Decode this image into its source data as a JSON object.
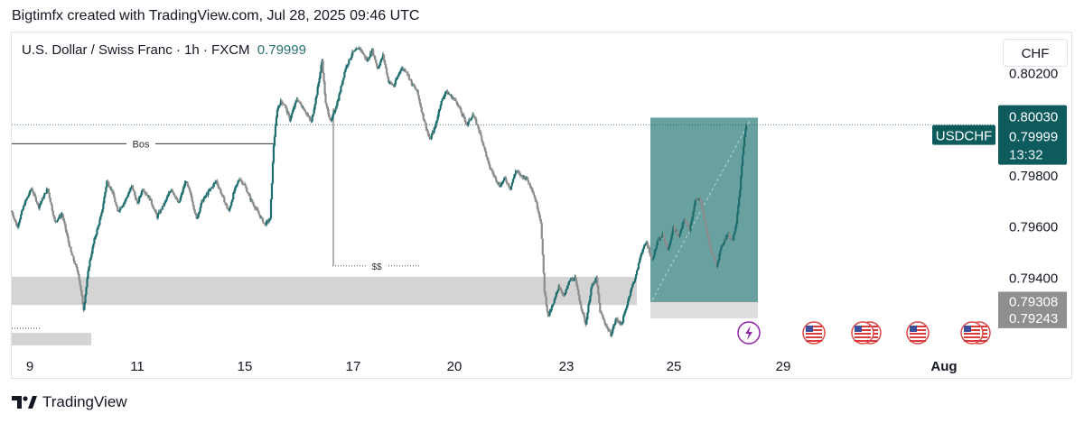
{
  "caption": "Bigtimfx created with TradingView.com, Jul 28, 2025 09:46 UTC",
  "header": {
    "symbol_title": "U.S. Dollar / Swiss Franc · 1h · FXCM",
    "last_price": "0.79999",
    "currency": "CHF"
  },
  "brand": {
    "name": "TradingView"
  },
  "colors": {
    "up": "#1e6e6e",
    "down": "#8c8c8c",
    "box": "#4f8f8f",
    "zone": "#d4d4d4",
    "accent": "#0d5b5d",
    "gray_label": "#8f8f8f"
  },
  "chart_data": {
    "type": "candlestick",
    "timeframe": "1h",
    "ylim": [
      0.7913,
      0.8036
    ],
    "y_ticks": [
      "0.80200",
      "0.79800",
      "0.79600",
      "0.79400"
    ],
    "x_ticks": [
      "9",
      "11",
      "15",
      "17",
      "20",
      "23",
      "25",
      "29",
      "Aug"
    ],
    "price_labels": [
      {
        "text": "0.80030",
        "value": 0.8003,
        "style": "accent"
      },
      {
        "text": "0.79999",
        "value": 0.79999,
        "style": "accent",
        "tag": "USDCHF",
        "countdown": "13:32"
      },
      {
        "text": "0.79308",
        "value": 0.79308,
        "style": "gray"
      },
      {
        "text": "0.79243",
        "value": 0.79243,
        "style": "gray"
      }
    ],
    "annotations": [
      {
        "text": "Bos",
        "value": 0.79925
      },
      {
        "text": "$$",
        "value": 0.79448
      }
    ],
    "zones": [
      {
        "name": "demand-zone",
        "from": 0.79295,
        "to": 0.79405
      }
    ],
    "position_box": {
      "top": 0.79999,
      "entry": 0.79308,
      "stop": 0.79243
    },
    "events": [
      "lightning",
      "us-flag",
      "us-flag-double",
      "us-flag",
      "us-flag-double"
    ],
    "series": [
      {
        "name": "USDCHF",
        "close_path": [
          [
            0,
            0.7966
          ],
          [
            6,
            0.796
          ],
          [
            14,
            0.7969
          ],
          [
            22,
            0.7975
          ],
          [
            30,
            0.7968
          ],
          [
            40,
            0.7975
          ],
          [
            48,
            0.7962
          ],
          [
            56,
            0.7965
          ],
          [
            66,
            0.795
          ],
          [
            74,
            0.7942
          ],
          [
            80,
            0.7928
          ],
          [
            86,
            0.7945
          ],
          [
            92,
            0.7955
          ],
          [
            100,
            0.7965
          ],
          [
            106,
            0.7978
          ],
          [
            112,
            0.7974
          ],
          [
            118,
            0.7966
          ],
          [
            126,
            0.797
          ],
          [
            134,
            0.7976
          ],
          [
            140,
            0.7969
          ],
          [
            146,
            0.7975
          ],
          [
            154,
            0.7971
          ],
          [
            162,
            0.7964
          ],
          [
            170,
            0.7969
          ],
          [
            178,
            0.7975
          ],
          [
            186,
            0.7969
          ],
          [
            194,
            0.7978
          ],
          [
            200,
            0.7972
          ],
          [
            206,
            0.7963
          ],
          [
            212,
            0.797
          ],
          [
            220,
            0.7974
          ],
          [
            228,
            0.7978
          ],
          [
            236,
            0.7971
          ],
          [
            242,
            0.7966
          ],
          [
            248,
            0.7974
          ],
          [
            254,
            0.7979
          ],
          [
            260,
            0.7976
          ],
          [
            266,
            0.7971
          ],
          [
            274,
            0.7966
          ],
          [
            282,
            0.7961
          ],
          [
            288,
            0.7963
          ],
          [
            292,
            0.7992
          ],
          [
            296,
            0.8006
          ],
          [
            300,
            0.8009
          ],
          [
            304,
            0.8008
          ],
          [
            310,
            0.8002
          ],
          [
            318,
            0.801
          ],
          [
            326,
            0.8006
          ],
          [
            334,
            0.8001
          ],
          [
            340,
            0.8012
          ],
          [
            346,
            0.8025
          ],
          [
            350,
            0.8008
          ],
          [
            356,
            0.8001
          ],
          [
            364,
            0.801
          ],
          [
            372,
            0.8022
          ],
          [
            380,
            0.8028
          ],
          [
            388,
            0.803
          ],
          [
            396,
            0.8025
          ],
          [
            402,
            0.8029
          ],
          [
            408,
            0.8022
          ],
          [
            414,
            0.8027
          ],
          [
            420,
            0.8017
          ],
          [
            426,
            0.8015
          ],
          [
            434,
            0.8022
          ],
          [
            440,
            0.8021
          ],
          [
            446,
            0.8016
          ],
          [
            452,
            0.8013
          ],
          [
            458,
            0.8004
          ],
          [
            462,
            0.7999
          ],
          [
            466,
            0.7994
          ],
          [
            472,
            0.7999
          ],
          [
            478,
            0.8008
          ],
          [
            484,
            0.8013
          ],
          [
            490,
            0.8011
          ],
          [
            496,
            0.8009
          ],
          [
            502,
            0.8004
          ],
          [
            508,
            0.8
          ],
          [
            514,
            0.8004
          ],
          [
            520,
            0.7999
          ],
          [
            526,
            0.7992
          ],
          [
            532,
            0.7984
          ],
          [
            538,
            0.798
          ],
          [
            544,
            0.7976
          ],
          [
            550,
            0.7979
          ],
          [
            556,
            0.7975
          ],
          [
            562,
            0.7982
          ],
          [
            568,
            0.798
          ],
          [
            574,
            0.7979
          ],
          [
            580,
            0.7975
          ],
          [
            586,
            0.7968
          ],
          [
            590,
            0.7962
          ],
          [
            594,
            0.7935
          ],
          [
            598,
            0.7925
          ],
          [
            604,
            0.793
          ],
          [
            610,
            0.7937
          ],
          [
            616,
            0.7933
          ],
          [
            622,
            0.7939
          ],
          [
            628,
            0.794
          ],
          [
            634,
            0.793
          ],
          [
            640,
            0.7922
          ],
          [
            646,
            0.7936
          ],
          [
            652,
            0.794
          ],
          [
            656,
            0.7927
          ],
          [
            662,
            0.7922
          ],
          [
            668,
            0.7918
          ],
          [
            674,
            0.7924
          ],
          [
            680,
            0.7922
          ],
          [
            684,
            0.7927
          ],
          [
            690,
            0.7935
          ],
          [
            696,
            0.7941
          ],
          [
            702,
            0.795
          ],
          [
            708,
            0.7954
          ],
          [
            714,
            0.7947
          ],
          [
            720,
            0.7954
          ],
          [
            726,
            0.7957
          ],
          [
            732,
            0.7951
          ],
          [
            738,
            0.796
          ],
          [
            744,
            0.7956
          ],
          [
            750,
            0.7963
          ],
          [
            756,
            0.7959
          ],
          [
            762,
            0.797
          ],
          [
            768,
            0.7971
          ],
          [
            774,
            0.796
          ],
          [
            780,
            0.795
          ],
          [
            786,
            0.7945
          ],
          [
            792,
            0.7953
          ],
          [
            798,
            0.7957
          ],
          [
            804,
            0.7955
          ],
          [
            808,
            0.7962
          ],
          [
            812,
            0.7975
          ],
          [
            816,
            0.7992
          ],
          [
            819,
            0.8
          ]
        ]
      }
    ]
  }
}
